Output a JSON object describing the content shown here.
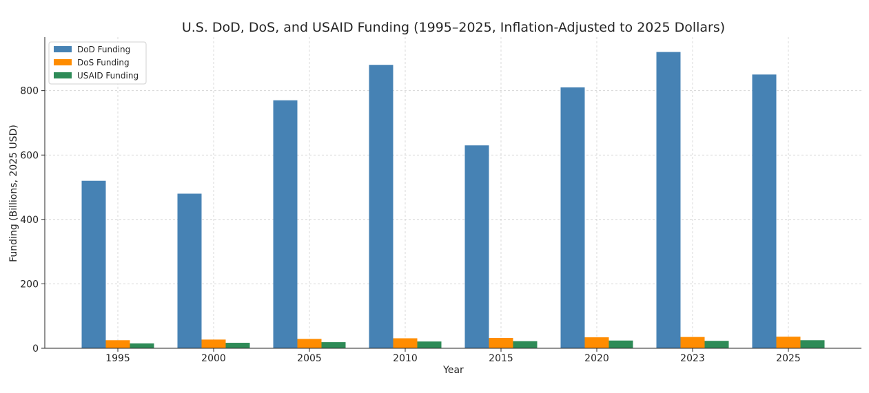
{
  "chart_data": {
    "type": "bar",
    "title": "U.S. DoD, DoS, and USAID Funding (1995–2025, Inflation-Adjusted to 2025 Dollars)",
    "xlabel": "Year",
    "ylabel": "Funding (Billions, 2025 USD)",
    "categories": [
      "1995",
      "2000",
      "2005",
      "2010",
      "2015",
      "2020",
      "2023",
      "2025"
    ],
    "series": [
      {
        "name": "DoD Funding",
        "color": "#4682b4",
        "values": [
          520,
          480,
          770,
          880,
          630,
          810,
          920,
          850
        ]
      },
      {
        "name": "DoS Funding",
        "color": "#ff8c00",
        "values": [
          25,
          27,
          29,
          31,
          32,
          34,
          35,
          36
        ]
      },
      {
        "name": "USAID Funding",
        "color": "#2e8b57",
        "values": [
          15,
          17,
          19,
          21,
          22,
          24,
          23,
          25
        ]
      }
    ],
    "yticks": [
      0,
      200,
      400,
      600,
      800
    ],
    "ylim": [
      0,
      966
    ],
    "grid": true,
    "legend_position": "top-left"
  }
}
